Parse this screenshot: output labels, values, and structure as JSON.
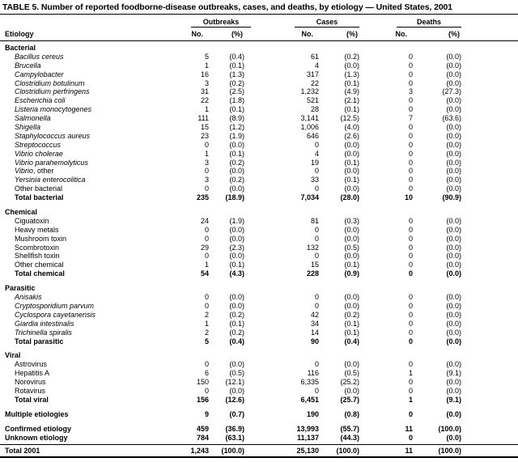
{
  "title": "TABLE 5. Number of reported foodborne-disease outbreaks, cases, and deaths, by etiology — United States, 2001",
  "colors": {
    "text": "#000000",
    "background": "#ffffff",
    "rules": "#000000"
  },
  "columns": {
    "etiology": "Etiology",
    "groups": [
      {
        "label": "Outbreaks",
        "no": "No.",
        "pct": "(%)"
      },
      {
        "label": "Cases",
        "no": "No.",
        "pct": "(%)"
      },
      {
        "label": "Deaths",
        "no": "No.",
        "pct": "(%)"
      }
    ]
  },
  "sections": [
    {
      "header": "Bacterial",
      "rows": [
        {
          "label_italic": "Bacillus cereus",
          "label_regular": "",
          "out_no": "5",
          "out_pct": "(0.4)",
          "cases_no": "61",
          "cases_pct": "(0.2)",
          "deaths_no": "0",
          "deaths_pct": "(0.0)"
        },
        {
          "label_italic": "Brucella",
          "label_regular": "",
          "out_no": "1",
          "out_pct": "(0.1)",
          "cases_no": "4",
          "cases_pct": "(0.0)",
          "deaths_no": "0",
          "deaths_pct": "(0.0)"
        },
        {
          "label_italic": "Campylobacter",
          "label_regular": "",
          "out_no": "16",
          "out_pct": "(1.3)",
          "cases_no": "317",
          "cases_pct": "(1.3)",
          "deaths_no": "0",
          "deaths_pct": "(0.0)"
        },
        {
          "label_italic": "Clostridium botulinum",
          "label_regular": "",
          "out_no": "3",
          "out_pct": "(0.2)",
          "cases_no": "22",
          "cases_pct": "(0.1)",
          "deaths_no": "0",
          "deaths_pct": "(0.0)"
        },
        {
          "label_italic": "Clostridium perfringens",
          "label_regular": "",
          "out_no": "31",
          "out_pct": "(2.5)",
          "cases_no": "1,232",
          "cases_pct": "(4.9)",
          "deaths_no": "3",
          "deaths_pct": "(27.3)"
        },
        {
          "label_italic": "Escherichia coli",
          "label_regular": "",
          "out_no": "22",
          "out_pct": "(1.8)",
          "cases_no": "521",
          "cases_pct": "(2.1)",
          "deaths_no": "0",
          "deaths_pct": "(0.0)"
        },
        {
          "label_italic": "Listeria monocytogenes",
          "label_regular": "",
          "out_no": "1",
          "out_pct": "(0.1)",
          "cases_no": "28",
          "cases_pct": "(0.1)",
          "deaths_no": "0",
          "deaths_pct": "(0.0)"
        },
        {
          "label_italic": "Salmonella",
          "label_regular": "",
          "out_no": "111",
          "out_pct": "(8.9)",
          "cases_no": "3,141",
          "cases_pct": "(12.5)",
          "deaths_no": "7",
          "deaths_pct": "(63.6)"
        },
        {
          "label_italic": "Shigella",
          "label_regular": "",
          "out_no": "15",
          "out_pct": "(1.2)",
          "cases_no": "1,006",
          "cases_pct": "(4.0)",
          "deaths_no": "0",
          "deaths_pct": "(0.0)"
        },
        {
          "label_italic": "Staphylococcus aureus",
          "label_regular": "",
          "out_no": "23",
          "out_pct": "(1.9)",
          "cases_no": "646",
          "cases_pct": "(2.6)",
          "deaths_no": "0",
          "deaths_pct": "(0.0)"
        },
        {
          "label_italic": "Streptococcus",
          "label_regular": "",
          "out_no": "0",
          "out_pct": "(0.0)",
          "cases_no": "0",
          "cases_pct": "(0.0)",
          "deaths_no": "0",
          "deaths_pct": "(0.0)"
        },
        {
          "label_italic": "Vibrio cholerae",
          "label_regular": "",
          "out_no": "1",
          "out_pct": "(0.1)",
          "cases_no": "4",
          "cases_pct": "(0.0)",
          "deaths_no": "0",
          "deaths_pct": "(0.0)"
        },
        {
          "label_italic": "Vibrio parahemolyticus",
          "label_regular": "",
          "out_no": "3",
          "out_pct": "(0.2)",
          "cases_no": "19",
          "cases_pct": "(0.1)",
          "deaths_no": "0",
          "deaths_pct": "(0.0)"
        },
        {
          "label_italic": "Vibrio",
          "label_regular": ", other",
          "out_no": "0",
          "out_pct": "(0.0)",
          "cases_no": "0",
          "cases_pct": "(0.0)",
          "deaths_no": "0",
          "deaths_pct": "(0.0)"
        },
        {
          "label_italic": "Yersinia enterocolitica",
          "label_regular": "",
          "out_no": "3",
          "out_pct": "(0.2)",
          "cases_no": "33",
          "cases_pct": "(0.1)",
          "deaths_no": "0",
          "deaths_pct": "(0.0)"
        },
        {
          "label_italic": "",
          "label_regular": "Other bacterial",
          "out_no": "0",
          "out_pct": "(0.0)",
          "cases_no": "0",
          "cases_pct": "(0.0)",
          "deaths_no": "0",
          "deaths_pct": "(0.0)"
        }
      ],
      "total": {
        "label_italic": "",
        "label_regular": "Total bacterial",
        "out_no": "235",
        "out_pct": "(18.9)",
        "cases_no": "7,034",
        "cases_pct": "(28.0)",
        "deaths_no": "10",
        "deaths_pct": "(90.9)"
      }
    },
    {
      "header": "Chemical",
      "rows": [
        {
          "label_italic": "",
          "label_regular": "Ciguatoxin",
          "out_no": "24",
          "out_pct": "(1.9)",
          "cases_no": "81",
          "cases_pct": "(0.3)",
          "deaths_no": "0",
          "deaths_pct": "(0.0)"
        },
        {
          "label_italic": "",
          "label_regular": "Heavy metals",
          "out_no": "0",
          "out_pct": "(0.0)",
          "cases_no": "0",
          "cases_pct": "(0.0)",
          "deaths_no": "0",
          "deaths_pct": "(0.0)"
        },
        {
          "label_italic": "",
          "label_regular": "Mushroom toxin",
          "out_no": "0",
          "out_pct": "(0.0)",
          "cases_no": "0",
          "cases_pct": "(0.0)",
          "deaths_no": "0",
          "deaths_pct": "(0.0)"
        },
        {
          "label_italic": "",
          "label_regular": "Scombrotoxin",
          "out_no": "29",
          "out_pct": "(2.3)",
          "cases_no": "132",
          "cases_pct": "(0.5)",
          "deaths_no": "0",
          "deaths_pct": "(0.0)"
        },
        {
          "label_italic": "",
          "label_regular": "Shellfish toxin",
          "out_no": "0",
          "out_pct": "(0.0)",
          "cases_no": "0",
          "cases_pct": "(0.0)",
          "deaths_no": "0",
          "deaths_pct": "(0.0)"
        },
        {
          "label_italic": "",
          "label_regular": "Other chemical",
          "out_no": "1",
          "out_pct": "(0.1)",
          "cases_no": "15",
          "cases_pct": "(0.1)",
          "deaths_no": "0",
          "deaths_pct": "(0.0)"
        }
      ],
      "total": {
        "label_italic": "",
        "label_regular": "Total chemical",
        "out_no": "54",
        "out_pct": "(4.3)",
        "cases_no": "228",
        "cases_pct": "(0.9)",
        "deaths_no": "0",
        "deaths_pct": "(0.0)"
      }
    },
    {
      "header": "Parasitic",
      "rows": [
        {
          "label_italic": "Anisakis",
          "label_regular": "",
          "out_no": "0",
          "out_pct": "(0.0)",
          "cases_no": "0",
          "cases_pct": "(0.0)",
          "deaths_no": "0",
          "deaths_pct": "(0.0)"
        },
        {
          "label_italic": "Cryptosporidium parvum",
          "label_regular": "",
          "out_no": "0",
          "out_pct": "(0.0)",
          "cases_no": "0",
          "cases_pct": "(0.0)",
          "deaths_no": "0",
          "deaths_pct": "(0.0)"
        },
        {
          "label_italic": "Cyclospora cayetanensis",
          "label_regular": "",
          "out_no": "2",
          "out_pct": "(0.2)",
          "cases_no": "42",
          "cases_pct": "(0.2)",
          "deaths_no": "0",
          "deaths_pct": "(0.0)"
        },
        {
          "label_italic": "Giardia intestinalis",
          "label_regular": "",
          "out_no": "1",
          "out_pct": "(0.1)",
          "cases_no": "34",
          "cases_pct": "(0.1)",
          "deaths_no": "0",
          "deaths_pct": "(0.0)"
        },
        {
          "label_italic": "Trichinella spiralis",
          "label_regular": "",
          "out_no": "2",
          "out_pct": "(0.2)",
          "cases_no": "14",
          "cases_pct": "(0.1)",
          "deaths_no": "0",
          "deaths_pct": "(0.0)"
        }
      ],
      "total": {
        "label_italic": "",
        "label_regular": "Total parasitic",
        "out_no": "5",
        "out_pct": "(0.4)",
        "cases_no": "90",
        "cases_pct": "(0.4)",
        "deaths_no": "0",
        "deaths_pct": "(0.0)"
      }
    },
    {
      "header": "Viral",
      "rows": [
        {
          "label_italic": "",
          "label_regular": "Astrovirus",
          "out_no": "0",
          "out_pct": "(0.0)",
          "cases_no": "0",
          "cases_pct": "(0.0)",
          "deaths_no": "0",
          "deaths_pct": "(0.0)"
        },
        {
          "label_italic": "",
          "label_regular": "Hepatitis A",
          "out_no": "6",
          "out_pct": "(0.5)",
          "cases_no": "116",
          "cases_pct": "(0.5)",
          "deaths_no": "1",
          "deaths_pct": "(9.1)"
        },
        {
          "label_italic": "",
          "label_regular": "Norovirus",
          "out_no": "150",
          "out_pct": "(12.1)",
          "cases_no": "6,335",
          "cases_pct": "(25.2)",
          "deaths_no": "0",
          "deaths_pct": "(0.0)"
        },
        {
          "label_italic": "",
          "label_regular": "Rotavirus",
          "out_no": "0",
          "out_pct": "(0.0)",
          "cases_no": "0",
          "cases_pct": "(0.0)",
          "deaths_no": "0",
          "deaths_pct": "(0.0)"
        }
      ],
      "total": {
        "label_italic": "",
        "label_regular": "Total viral",
        "out_no": "156",
        "out_pct": "(12.6)",
        "cases_no": "6,451",
        "cases_pct": "(25.7)",
        "deaths_no": "1",
        "deaths_pct": "(9.1)"
      }
    }
  ],
  "multiple_etiologies": {
    "label_italic": "",
    "label_regular": "Multiple etiologies",
    "out_no": "9",
    "out_pct": "(0.7)",
    "cases_no": "190",
    "cases_pct": "(0.8)",
    "deaths_no": "0",
    "deaths_pct": "(0.0)"
  },
  "confirmed_etiology": {
    "label_italic": "",
    "label_regular": "Confirmed etiology",
    "out_no": "459",
    "out_pct": "(36.9)",
    "cases_no": "13,993",
    "cases_pct": "(55.7)",
    "deaths_no": "11",
    "deaths_pct": "(100.0)"
  },
  "unknown_etiology": {
    "label_italic": "",
    "label_regular": "Unknown etiology",
    "out_no": "784",
    "out_pct": "(63.1)",
    "cases_no": "11,137",
    "cases_pct": "(44.3)",
    "deaths_no": "0",
    "deaths_pct": "(0.0)"
  },
  "total_2001": {
    "label_italic": "",
    "label_regular": "Total 2001",
    "out_no": "1,243",
    "out_pct": "(100.0)",
    "cases_no": "25,130",
    "cases_pct": "(100.0)",
    "deaths_no": "11",
    "deaths_pct": "(100.0)"
  }
}
